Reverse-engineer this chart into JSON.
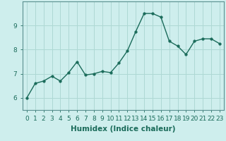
{
  "x": [
    0,
    1,
    2,
    3,
    4,
    5,
    6,
    7,
    8,
    9,
    10,
    11,
    12,
    13,
    14,
    15,
    16,
    17,
    18,
    19,
    20,
    21,
    22,
    23
  ],
  "y": [
    6.0,
    6.6,
    6.7,
    6.9,
    6.7,
    7.05,
    7.5,
    6.95,
    7.0,
    7.1,
    7.05,
    7.45,
    7.95,
    8.75,
    9.5,
    9.5,
    9.35,
    8.35,
    8.15,
    7.8,
    8.35,
    8.45,
    8.45,
    8.25
  ],
  "line_color": "#1a6b5a",
  "marker_color": "#1a6b5a",
  "background_color": "#ceeeed",
  "grid_color": "#aed8d4",
  "xlabel": "Humidex (Indice chaleur)",
  "ylim": [
    5.5,
    10.0
  ],
  "xlim": [
    -0.5,
    23.5
  ],
  "yticks": [
    6,
    7,
    8,
    9
  ],
  "xticks": [
    0,
    1,
    2,
    3,
    4,
    5,
    6,
    7,
    8,
    9,
    10,
    11,
    12,
    13,
    14,
    15,
    16,
    17,
    18,
    19,
    20,
    21,
    22,
    23
  ],
  "tick_label_fontsize": 6.5,
  "xlabel_fontsize": 7.5,
  "marker_size": 2.5,
  "line_width": 1.0
}
